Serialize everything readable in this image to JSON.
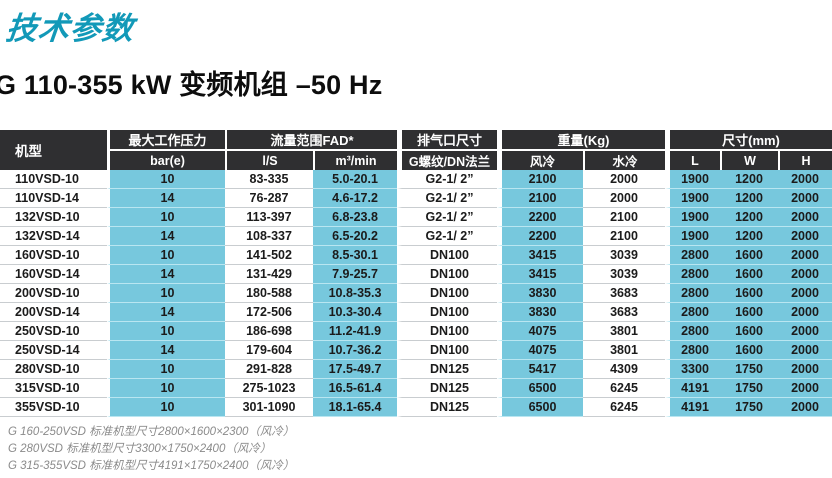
{
  "header": {
    "section_title": "技术参数",
    "product_title": "G 110-355 kW 变频机组 –50 Hz"
  },
  "table": {
    "model_col_label": "机型",
    "groups": [
      {
        "label": "最大工作压力"
      },
      {
        "label": "流量范围FAD*"
      },
      {
        "label": "排气口尺寸"
      },
      {
        "label": "重量(Kg)"
      },
      {
        "label": "尺寸(mm)"
      }
    ],
    "subheaders": [
      "bar(e)",
      "l/S",
      "m³/min",
      "G螺纹/DN法兰",
      "风冷",
      "水冷",
      "L",
      "W",
      "H"
    ],
    "rows": [
      [
        "110VSD-10",
        "10",
        "83-335",
        "5.0-20.1",
        "G2-1/ 2”",
        "2100",
        "2000",
        "1900",
        "1200",
        "2000"
      ],
      [
        "110VSD-14",
        "14",
        "76-287",
        "4.6-17.2",
        "G2-1/ 2”",
        "2100",
        "2000",
        "1900",
        "1200",
        "2000"
      ],
      [
        "132VSD-10",
        "10",
        "113-397",
        "6.8-23.8",
        "G2-1/ 2”",
        "2200",
        "2100",
        "1900",
        "1200",
        "2000"
      ],
      [
        "132VSD-14",
        "14",
        "108-337",
        "6.5-20.2",
        "G2-1/ 2”",
        "2200",
        "2100",
        "1900",
        "1200",
        "2000"
      ],
      [
        "160VSD-10",
        "10",
        "141-502",
        "8.5-30.1",
        "DN100",
        "3415",
        "3039",
        "2800",
        "1600",
        "2000"
      ],
      [
        "160VSD-14",
        "14",
        "131-429",
        "7.9-25.7",
        "DN100",
        "3415",
        "3039",
        "2800",
        "1600",
        "2000"
      ],
      [
        "200VSD-10",
        "10",
        "180-588",
        "10.8-35.3",
        "DN100",
        "3830",
        "3683",
        "2800",
        "1600",
        "2000"
      ],
      [
        "200VSD-14",
        "14",
        "172-506",
        "10.3-30.4",
        "DN100",
        "3830",
        "3683",
        "2800",
        "1600",
        "2000"
      ],
      [
        "250VSD-10",
        "10",
        "186-698",
        "11.2-41.9",
        "DN100",
        "4075",
        "3801",
        "2800",
        "1600",
        "2000"
      ],
      [
        "250VSD-14",
        "14",
        "179-604",
        "10.7-36.2",
        "DN100",
        "4075",
        "3801",
        "2800",
        "1600",
        "2000"
      ],
      [
        "280VSD-10",
        "10",
        "291-828",
        "17.5-49.7",
        "DN125",
        "5417",
        "4309",
        "3300",
        "1750",
        "2000"
      ],
      [
        "315VSD-10",
        "10",
        "275-1023",
        "16.5-61.4",
        "DN125",
        "6500",
        "6245",
        "4191",
        "1750",
        "2000"
      ],
      [
        "355VSD-10",
        "10",
        "301-1090",
        "18.1-65.4",
        "DN125",
        "6500",
        "6245",
        "4191",
        "1750",
        "2000"
      ]
    ]
  },
  "footnotes": [
    "G 160-250VSD 标准机型尺寸2800×1600×2300（风冷）",
    "G 280VSD 标准机型尺寸3300×1750×2400（风冷）",
    "G 315-355VSD 标准机型尺寸4191×1750×2400（风冷）"
  ],
  "colors": {
    "accent_teal": "#1299b8",
    "header_dark": "#2f2f31",
    "cell_blue": "#77c8dd"
  }
}
